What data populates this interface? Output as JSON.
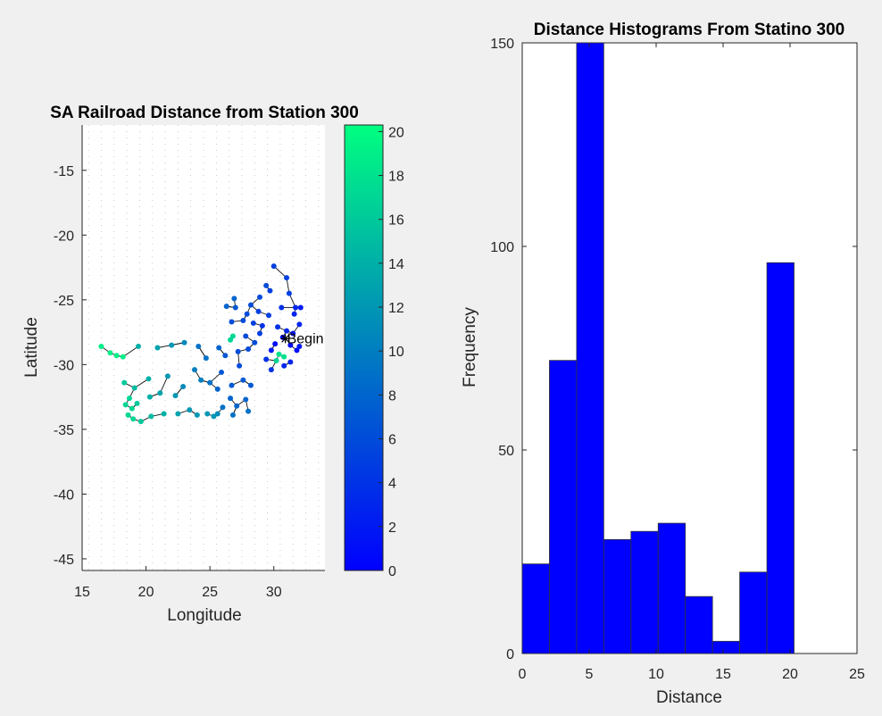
{
  "chart_data": [
    {
      "type": "scatter",
      "title": "SA Railroad Distance from Station 300",
      "xlabel": "Longitude",
      "ylabel": "Latitude",
      "xlim": [
        15,
        34
      ],
      "ylim": [
        -45.9,
        -11.5
      ],
      "xticks": [
        15,
        20,
        25,
        30
      ],
      "yticks": [
        -15,
        -20,
        -25,
        -30,
        -35,
        -40,
        -45
      ],
      "grid": "dotted",
      "annotation": {
        "text": "Begin",
        "x": 30.9,
        "y": -28.0
      },
      "colorbar": {
        "ticks": [
          20,
          18,
          16,
          14,
          12,
          10,
          8,
          6,
          4,
          2,
          0
        ],
        "range": [
          0,
          20.3
        ],
        "colormap": "winter",
        "color_low": "#0000ff",
        "color_high": "#00ff80"
      },
      "series": [
        {
          "values": [
            [
              30.0,
              -22.4,
              5
            ],
            [
              31.2,
              -24.5,
              5
            ],
            [
              29.4,
              -23.9,
              6
            ],
            [
              30.6,
              -25.6,
              4
            ],
            [
              31.7,
              -25.6,
              3
            ],
            [
              32.1,
              -25.6,
              2
            ],
            [
              31.6,
              -26.1,
              3
            ],
            [
              28.2,
              -25.4,
              6
            ],
            [
              27.0,
              -25.6,
              7
            ],
            [
              26.3,
              -25.5,
              8
            ],
            [
              27.9,
              -26.1,
              6
            ],
            [
              28.8,
              -25.9,
              5
            ],
            [
              29.6,
              -26.2,
              5
            ],
            [
              28.4,
              -26.8,
              5
            ],
            [
              27.6,
              -26.6,
              6
            ],
            [
              26.7,
              -26.7,
              6
            ],
            [
              29.1,
              -27.0,
              4
            ],
            [
              30.3,
              -27.1,
              4
            ],
            [
              31.0,
              -27.4,
              3
            ],
            [
              31.5,
              -27.6,
              2
            ],
            [
              30.7,
              -27.9,
              0
            ],
            [
              31.3,
              -28.5,
              1
            ],
            [
              31.8,
              -28.9,
              1
            ],
            [
              32.0,
              -28.6,
              2
            ],
            [
              30.1,
              -28.4,
              1
            ],
            [
              29.8,
              -28.9,
              2
            ],
            [
              30.4,
              -29.2,
              18
            ],
            [
              30.8,
              -29.4,
              18
            ],
            [
              30.2,
              -29.7,
              17
            ],
            [
              31.3,
              -29.8,
              3
            ],
            [
              30.8,
              -30.1,
              3
            ],
            [
              29.4,
              -29.6,
              4
            ],
            [
              29.8,
              -30.4,
              4
            ],
            [
              28.5,
              -28.3,
              6
            ],
            [
              28.9,
              -27.6,
              5
            ],
            [
              27.8,
              -27.8,
              6
            ],
            [
              26.8,
              -27.8,
              17
            ],
            [
              26.6,
              -28.1,
              17
            ],
            [
              25.7,
              -28.7,
              8
            ],
            [
              26.2,
              -29.3,
              7
            ],
            [
              27.2,
              -29.0,
              6
            ],
            [
              28.0,
              -28.8,
              6
            ],
            [
              27.3,
              -30.1,
              6
            ],
            [
              25.9,
              -30.6,
              7
            ],
            [
              24.7,
              -29.5,
              9
            ],
            [
              24.1,
              -28.6,
              9
            ],
            [
              23.0,
              -28.3,
              11
            ],
            [
              22.0,
              -28.5,
              12
            ],
            [
              20.9,
              -28.7,
              13
            ],
            [
              19.4,
              -28.6,
              14
            ],
            [
              25.0,
              -31.4,
              9
            ],
            [
              25.6,
              -31.9,
              8
            ],
            [
              26.7,
              -31.6,
              7
            ],
            [
              27.6,
              -31.2,
              7
            ],
            [
              28.2,
              -31.6,
              7
            ],
            [
              27.8,
              -32.7,
              8
            ],
            [
              26.6,
              -32.6,
              8
            ],
            [
              26.0,
              -33.3,
              9
            ],
            [
              27.1,
              -33.2,
              8
            ],
            [
              28.0,
              -33.6,
              9
            ],
            [
              26.8,
              -33.9,
              9
            ],
            [
              25.6,
              -33.8,
              11
            ],
            [
              25.3,
              -34.0,
              12
            ],
            [
              24.8,
              -33.8,
              12
            ],
            [
              23.4,
              -33.5,
              12
            ],
            [
              22.5,
              -33.8,
              13
            ],
            [
              21.4,
              -33.8,
              14
            ],
            [
              20.4,
              -34.0,
              15
            ],
            [
              19.6,
              -34.4,
              16
            ],
            [
              19.0,
              -34.2,
              17
            ],
            [
              18.6,
              -33.9,
              17
            ],
            [
              18.9,
              -33.4,
              17
            ],
            [
              18.4,
              -33.1,
              17
            ],
            [
              19.3,
              -33.0,
              16
            ],
            [
              18.7,
              -32.6,
              17
            ],
            [
              18.3,
              -31.4,
              16
            ],
            [
              19.1,
              -31.8,
              15
            ],
            [
              20.3,
              -32.5,
              14
            ],
            [
              21.1,
              -32.2,
              13
            ],
            [
              22.3,
              -32.4,
              12
            ],
            [
              22.9,
              -31.7,
              11
            ],
            [
              21.7,
              -30.9,
              12
            ],
            [
              20.2,
              -31.1,
              14
            ],
            [
              23.8,
              -30.4,
              10
            ],
            [
              24.3,
              -31.2,
              10
            ],
            [
              16.5,
              -28.6,
              19
            ],
            [
              17.2,
              -29.1,
              19
            ],
            [
              17.7,
              -29.3,
              19
            ],
            [
              18.2,
              -29.4,
              19
            ],
            [
              24.0,
              -33.9,
              12
            ],
            [
              29.7,
              -24.3,
              5
            ],
            [
              31.0,
              -23.3,
              5
            ],
            [
              26.9,
              -24.9,
              8
            ],
            [
              28.9,
              -24.8,
              6
            ],
            [
              32.0,
              -26.9,
              3
            ]
          ]
        }
      ]
    },
    {
      "type": "bar",
      "title": "Distance Histograms From Statino 300",
      "xlabel": "Distance",
      "ylabel": "Frequency",
      "xlim": [
        0,
        25
      ],
      "ylim": [
        0,
        150
      ],
      "xticks": [
        0,
        5,
        10,
        15,
        20,
        25
      ],
      "yticks": [
        150,
        100,
        50,
        0
      ],
      "bar_color": "#0000ff",
      "bin_edges": [
        0,
        2.03,
        4.06,
        6.09,
        8.12,
        10.15,
        12.18,
        14.21,
        16.24,
        18.27,
        20.3
      ],
      "values": [
        22,
        72,
        150,
        28,
        30,
        32,
        14,
        3,
        20,
        96
      ]
    }
  ]
}
